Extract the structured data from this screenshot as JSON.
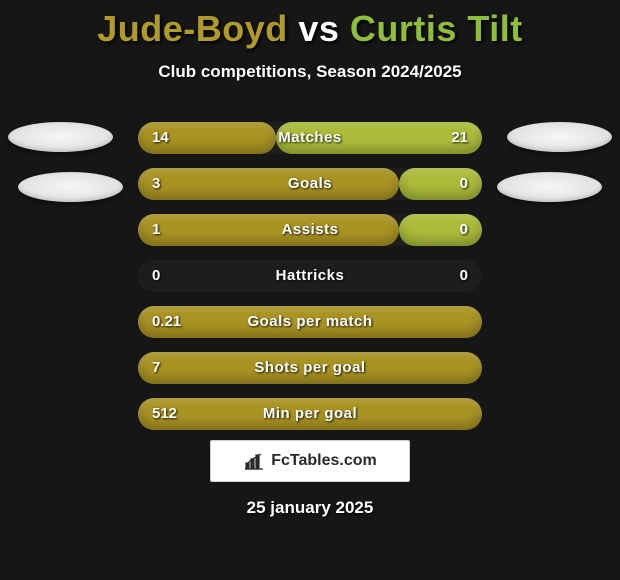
{
  "title": {
    "player1": "Jude-Boyd",
    "vs": "vs",
    "player2": "Curtis Tilt"
  },
  "subtitle": "Club competitions, Season 2024/2025",
  "colors": {
    "player1_bar": "#a99323",
    "player2_bar": "#aabc3a",
    "background": "#161616"
  },
  "rows": [
    {
      "label": "Matches",
      "left": "14",
      "right": "21",
      "left_pct": 40,
      "right_pct": 60
    },
    {
      "label": "Goals",
      "left": "3",
      "right": "0",
      "left_pct": 76,
      "right_pct": 24
    },
    {
      "label": "Assists",
      "left": "1",
      "right": "0",
      "left_pct": 76,
      "right_pct": 24
    },
    {
      "label": "Hattricks",
      "left": "0",
      "right": "0",
      "left_pct": 0,
      "right_pct": 0
    },
    {
      "label": "Goals per match",
      "left": "0.21",
      "right": "",
      "left_pct": 100,
      "right_pct": 0
    },
    {
      "label": "Shots per goal",
      "left": "7",
      "right": "",
      "left_pct": 100,
      "right_pct": 0
    },
    {
      "label": "Min per goal",
      "left": "512",
      "right": "",
      "left_pct": 100,
      "right_pct": 0
    }
  ],
  "logo_text": "FcTables.com",
  "date": "25 january 2025"
}
